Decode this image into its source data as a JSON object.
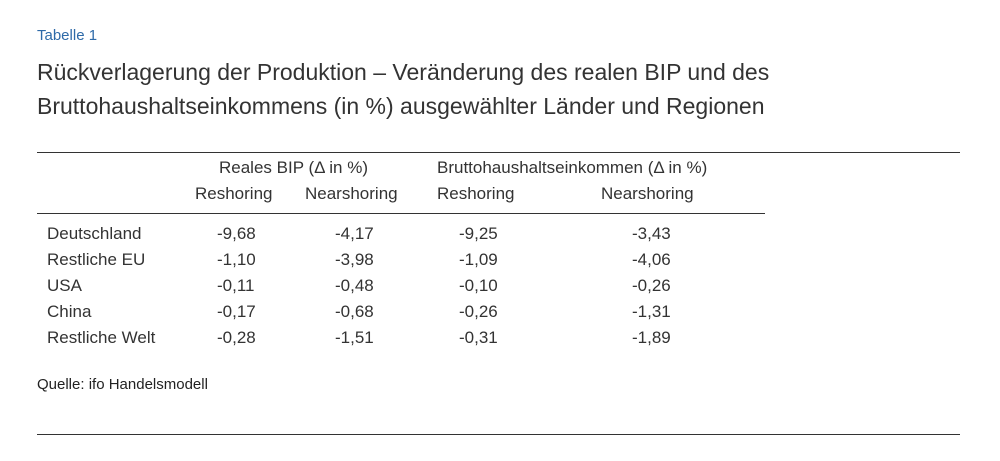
{
  "table_label": "Tabelle 1",
  "title": "Rückverlagerung der Produktion – Veränderung des realen BIP und des Bruttohaushaltseinkommens (in %) ausgewählter Länder und Regionen",
  "groups": [
    "Reales BIP (Δ in %)",
    "Bruttohaushaltseinkommen (Δ in %)"
  ],
  "subheaders": [
    "Reshoring",
    "Nearshoring",
    "Reshoring",
    "Nearshoring"
  ],
  "rows": [
    {
      "label": "Deutschland",
      "values": [
        "-9,68",
        "-4,17",
        "-9,25",
        "-3,43"
      ]
    },
    {
      "label": "Restliche EU",
      "values": [
        "-1,10",
        "-3,98",
        "-1,09",
        "-4,06"
      ]
    },
    {
      "label": "USA",
      "values": [
        "-0,11",
        "-0,48",
        "-0,10",
        "-0,26"
      ]
    },
    {
      "label": "China",
      "values": [
        "-0,17",
        "-0,68",
        "-0,26",
        "-1,31"
      ]
    },
    {
      "label": "Restliche Welt",
      "values": [
        "-0,28",
        "-1,51",
        "-0,31",
        "-1,89"
      ]
    }
  ],
  "source": "Quelle: ifo Handelsmodell"
}
